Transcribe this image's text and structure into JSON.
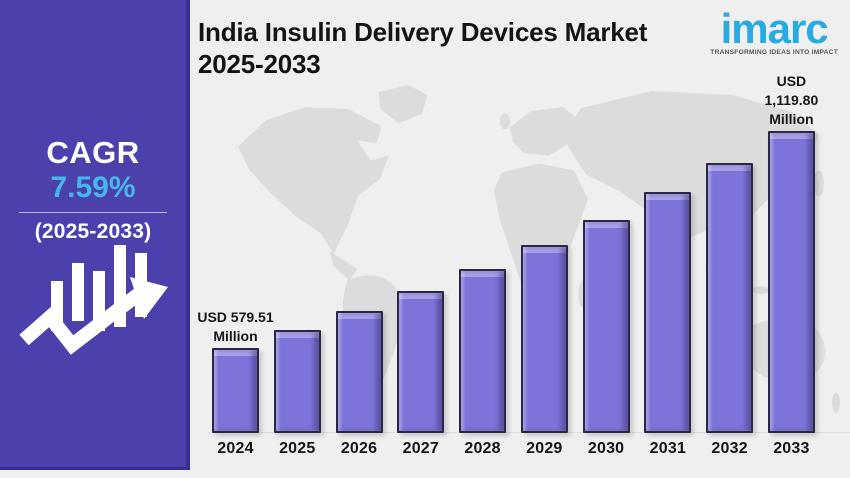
{
  "colors": {
    "page_bg": "#efefef",
    "sidebar_bg": "#4b40ac",
    "sidebar_edge": "#392f90",
    "cagr_blue": "#47b7eb",
    "brand_blue": "#29abe2",
    "bar_fill": "#7e73d9",
    "bar_highlight": "#a89fe9",
    "bar_border": "#2c2745",
    "map_gray": "#dcdcdc"
  },
  "sidebar": {
    "cagr_label": "CAGR",
    "cagr_value": "7.59%",
    "period": "(2025-2033)",
    "icon": "bar-chart-growth-arrow-icon"
  },
  "header": {
    "title_line1": "India Insulin Delivery Devices Market",
    "title_line2": "2025-2033"
  },
  "logo": {
    "name": "imarc",
    "tagline": "TRANSFORMING IDEAS INTO IMPACT"
  },
  "chart_data": {
    "type": "bar",
    "title": "India Insulin Delivery Devices Market 2025-2033",
    "unit": "USD Million",
    "cagr": "7.59%",
    "cagr_period": "2025-2033",
    "categories": [
      "2024",
      "2025",
      "2026",
      "2027",
      "2028",
      "2029",
      "2030",
      "2031",
      "2032",
      "2033"
    ],
    "values": [
      579.51,
      623.49,
      670.81,
      721.72,
      776.5,
      835.44,
      898.85,
      967.07,
      1040.47,
      1119.8
    ],
    "labeled_points": {
      "2024": "USD 579.51 Million",
      "2033": "USD 1,119.80 Million"
    },
    "first_bar_label": "USD 579.51\nMillion",
    "last_bar_label": "USD\n1,119.80\nMillion",
    "value_axis_visible": false,
    "grid": false,
    "legend": false,
    "background": "world-map-silhouette"
  }
}
